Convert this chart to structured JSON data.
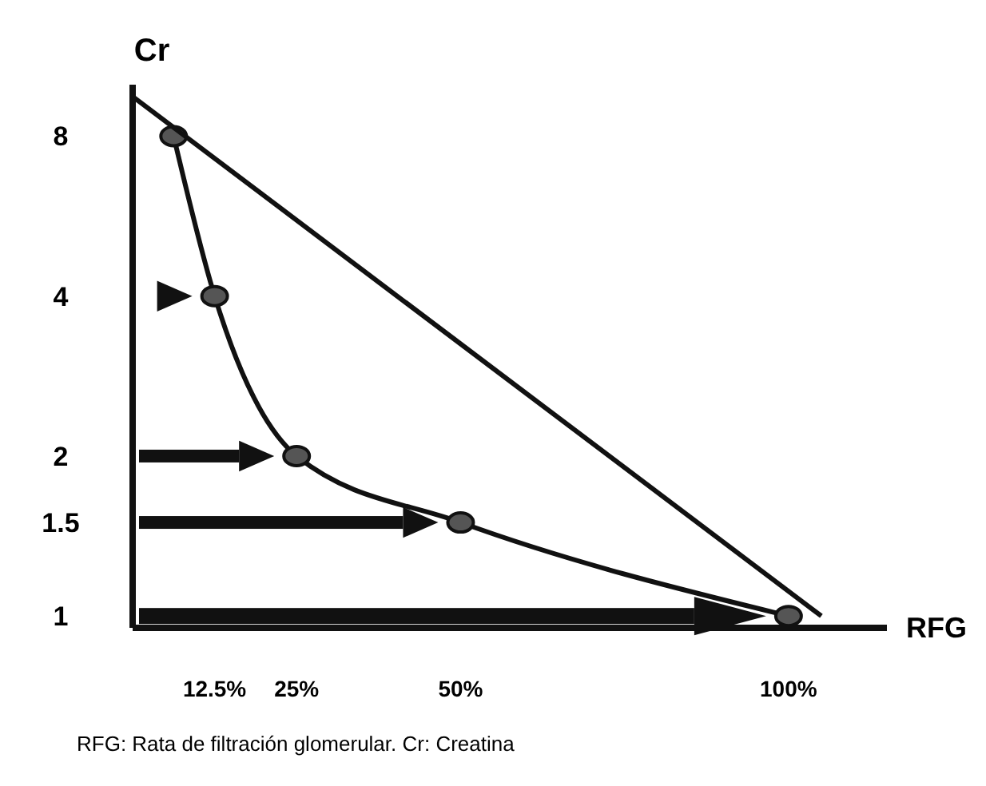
{
  "chart_data": {
    "type": "line",
    "xlabel": "RFG",
    "ylabel": "Cr",
    "log": "y",
    "xlim": [
      0,
      115
    ],
    "ylim": [
      0.95,
      10
    ],
    "xticks": [
      {
        "value": 12.5,
        "label": "12.5%"
      },
      {
        "value": 25,
        "label": "25%"
      },
      {
        "value": 50,
        "label": "50%"
      },
      {
        "value": 100,
        "label": "100%"
      }
    ],
    "yticks": [
      1,
      1.5,
      2,
      4,
      8
    ],
    "series": [
      {
        "color": "#111111",
        "marker": "circle",
        "x": [
          6.25,
          12.5,
          25,
          50,
          100
        ],
        "values": [
          8,
          4,
          2,
          1.5,
          1
        ]
      },
      {
        "color": "#111111",
        "marker": "none",
        "x": [
          0,
          105
        ],
        "values": [
          9.5,
          1
        ]
      }
    ],
    "grid": false,
    "annotations": [
      "RFG: Rata de filtración glomerular. Cr: Creatina"
    ]
  }
}
